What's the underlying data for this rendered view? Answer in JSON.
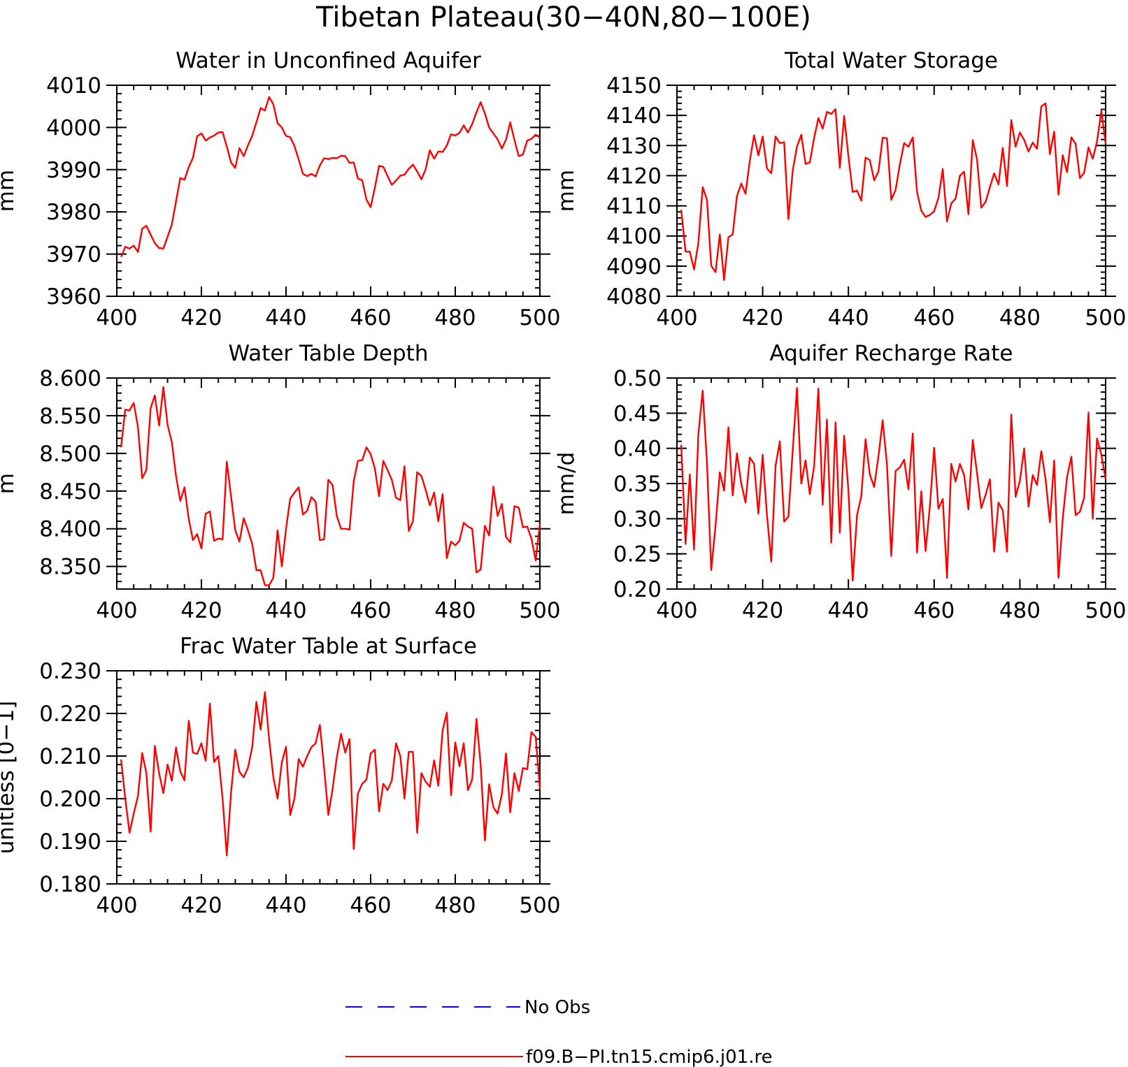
{
  "figure_title": "Tibetan Plateau(30−40N,80−100E)",
  "colors": {
    "model": "#ff0000",
    "obs": "#0000ff",
    "axes": "#000000"
  },
  "legend": {
    "position": "bottom-center",
    "entries": [
      {
        "label": "No Obs",
        "color": "#0000ff",
        "style": "dashed"
      },
      {
        "label": "f09.B−PI.tn15.cmip6.j01.re",
        "color": "#ff0000",
        "style": "solid"
      }
    ]
  },
  "chart_data": [
    {
      "type": "line",
      "title": "Water in Unconfined Aquifer",
      "xlabel": "",
      "ylabel": "mm",
      "xlim": [
        400,
        500
      ],
      "ylim": [
        3960,
        4010
      ],
      "xticks": [
        400,
        420,
        440,
        460,
        480,
        500
      ],
      "yticks": [
        3960,
        3970,
        3980,
        3990,
        4000,
        4010
      ],
      "ytick_labels": [
        "3960",
        "3970",
        "3980",
        "3990",
        "4000",
        "4010"
      ],
      "grid": false,
      "x_start": 401,
      "x_step": 1,
      "series": [
        {
          "name": "f09.B−PI.tn15.cmip6.j01.re",
          "values": [
            3969.3,
            3971.7,
            3971.3,
            3972.0,
            3970.5,
            3976.0,
            3976.7,
            3974.6,
            3972.6,
            3971.4,
            3971.3,
            3974.1,
            3977.0,
            3982.5,
            3988.0,
            3987.6,
            3990.6,
            3992.8,
            3997.9,
            3998.6,
            3996.9,
            3997.6,
            3998.1,
            3998.8,
            3998.9,
            3995.5,
            3991.7,
            3990.4,
            3995.1,
            3993.2,
            3995.8,
            3998.0,
            4001.2,
            4004.6,
            4004.0,
            4007.2,
            4005.5,
            4001.0,
            4000.0,
            3998.0,
            3997.7,
            3995.6,
            3992.4,
            3989.0,
            3988.5,
            3989.0,
            3988.4,
            3991.0,
            3992.7,
            3992.5,
            3992.8,
            3992.7,
            3993.3,
            3993.2,
            3991.6,
            3991.7,
            3987.9,
            3987.5,
            3982.9,
            3981.1,
            3985.7,
            3990.9,
            3990.7,
            3988.5,
            3986.4,
            3987.4,
            3988.6,
            3988.8,
            3990.2,
            3991.2,
            3989.6,
            3987.7,
            3990.1,
            3994.6,
            3992.6,
            3994.3,
            3994.2,
            3995.7,
            3998.4,
            3998.1,
            3998.7,
            4000.5,
            3998.8,
            4000.8,
            4003.6,
            4006.0,
            4003.3,
            4000.0,
            3998.6,
            3997.2,
            3995.0,
            3997.1,
            4001.2,
            3997.0,
            3993.2,
            3993.6,
            3996.9,
            3997.3,
            3998.3,
            3997.6
          ]
        }
      ]
    },
    {
      "type": "line",
      "title": "Total Water Storage",
      "xlabel": "",
      "ylabel": "mm",
      "xlim": [
        400,
        500
      ],
      "ylim": [
        4080,
        4150
      ],
      "xticks": [
        400,
        420,
        440,
        460,
        480,
        500
      ],
      "yticks": [
        4080,
        4090,
        4100,
        4110,
        4120,
        4130,
        4140,
        4150
      ],
      "ytick_labels": [
        "4080",
        "4090",
        "4100",
        "4110",
        "4120",
        "4130",
        "4140",
        "4150"
      ],
      "grid": false,
      "x_start": 401,
      "x_step": 1,
      "series": [
        {
          "name": "f09.B−PI.tn15.cmip6.j01.re",
          "values": [
            4108.7,
            4094.8,
            4094.8,
            4088.9,
            4097.6,
            4116.2,
            4112.0,
            4090.2,
            4088.0,
            4100.5,
            4085.4,
            4099.6,
            4100.5,
            4113.2,
            4117.4,
            4114.0,
            4125.0,
            4133.4,
            4126.7,
            4133.0,
            4122.4,
            4120.8,
            4133.0,
            4130.8,
            4131.1,
            4105.6,
            4121.6,
            4129.6,
            4133.6,
            4123.9,
            4124.4,
            4132.6,
            4139.1,
            4135.6,
            4141.2,
            4140.5,
            4142.1,
            4122.6,
            4139.8,
            4126.4,
            4114.6,
            4115.1,
            4111.7,
            4126.0,
            4125.2,
            4118.5,
            4121.3,
            4132.6,
            4132.4,
            4112.0,
            4115.2,
            4123.8,
            4130.8,
            4129.6,
            4132.7,
            4114.6,
            4108.4,
            4106.3,
            4107.0,
            4108.2,
            4112.6,
            4122.2,
            4104.8,
            4110.8,
            4112.4,
            4120.0,
            4121.3,
            4107.2,
            4131.8,
            4125.4,
            4109.4,
            4111.3,
            4116.2,
            4120.8,
            4117.1,
            4129.2,
            4116.6,
            4138.4,
            4129.6,
            4134.3,
            4131.9,
            4128.0,
            4131.0,
            4128.9,
            4143.0,
            4144.0,
            4127.2,
            4134.6,
            4113.7,
            4126.8,
            4121.2,
            4132.7,
            4130.6,
            4119.2,
            4121.0,
            4129.4,
            4125.6,
            4131.3,
            4141.5,
            4130.6
          ]
        }
      ]
    },
    {
      "type": "line",
      "title": "Water Table Depth",
      "xlabel": "",
      "ylabel": "m",
      "xlim": [
        400,
        500
      ],
      "ylim": [
        8.32,
        8.6
      ],
      "xticks": [
        400,
        420,
        440,
        460,
        480,
        500
      ],
      "yticks": [
        8.35,
        8.4,
        8.45,
        8.5,
        8.55,
        8.6
      ],
      "ytick_labels": [
        "8.350",
        "8.400",
        "8.450",
        "8.500",
        "8.550",
        "8.600"
      ],
      "grid": false,
      "x_start": 401,
      "x_step": 1,
      "series": [
        {
          "name": "f09.B−PI.tn15.cmip6.j01.re",
          "values": [
            8.508,
            8.558,
            8.557,
            8.567,
            8.535,
            8.467,
            8.478,
            8.56,
            8.577,
            8.537,
            8.588,
            8.538,
            8.515,
            8.47,
            8.437,
            8.455,
            8.413,
            8.385,
            8.393,
            8.374,
            8.42,
            8.423,
            8.384,
            8.387,
            8.386,
            8.489,
            8.443,
            8.398,
            8.383,
            8.414,
            8.398,
            8.38,
            8.345,
            8.345,
            8.325,
            8.325,
            8.335,
            8.398,
            8.35,
            8.4,
            8.44,
            8.448,
            8.455,
            8.419,
            8.424,
            8.442,
            8.436,
            8.385,
            8.386,
            8.465,
            8.458,
            8.417,
            8.4,
            8.4,
            8.399,
            8.463,
            8.49,
            8.491,
            8.508,
            8.499,
            8.48,
            8.443,
            8.49,
            8.478,
            8.465,
            8.441,
            8.438,
            8.483,
            8.397,
            8.41,
            8.475,
            8.47,
            8.452,
            8.431,
            8.448,
            8.41,
            8.446,
            8.361,
            8.383,
            8.378,
            8.384,
            8.408,
            8.403,
            8.4,
            8.342,
            8.346,
            8.404,
            8.391,
            8.456,
            8.417,
            8.433,
            8.389,
            8.382,
            8.43,
            8.428,
            8.402,
            8.403,
            8.387,
            8.358,
            8.406
          ]
        }
      ]
    },
    {
      "type": "line",
      "title": "Aquifer Recharge Rate",
      "xlabel": "",
      "ylabel": "mm/d",
      "xlim": [
        400,
        500
      ],
      "ylim": [
        0.2,
        0.5
      ],
      "xticks": [
        400,
        420,
        440,
        460,
        480,
        500
      ],
      "yticks": [
        0.2,
        0.25,
        0.3,
        0.35,
        0.4,
        0.45,
        0.5
      ],
      "ytick_labels": [
        "0.20",
        "0.25",
        "0.30",
        "0.35",
        "0.40",
        "0.45",
        "0.50"
      ],
      "grid": false,
      "x_start": 401,
      "x_step": 1,
      "series": [
        {
          "name": "f09.B−PI.tn15.cmip6.j01.re",
          "values": [
            0.405,
            0.264,
            0.363,
            0.256,
            0.42,
            0.482,
            0.38,
            0.227,
            0.29,
            0.366,
            0.34,
            0.43,
            0.333,
            0.393,
            0.35,
            0.323,
            0.387,
            0.378,
            0.307,
            0.391,
            0.305,
            0.239,
            0.375,
            0.41,
            0.296,
            0.303,
            0.396,
            0.486,
            0.35,
            0.383,
            0.335,
            0.375,
            0.485,
            0.32,
            0.441,
            0.266,
            0.437,
            0.28,
            0.418,
            0.34,
            0.212,
            0.305,
            0.332,
            0.413,
            0.363,
            0.345,
            0.388,
            0.44,
            0.376,
            0.247,
            0.368,
            0.373,
            0.384,
            0.342,
            0.421,
            0.252,
            0.339,
            0.254,
            0.318,
            0.401,
            0.314,
            0.328,
            0.216,
            0.378,
            0.353,
            0.378,
            0.362,
            0.313,
            0.412,
            0.365,
            0.315,
            0.334,
            0.356,
            0.253,
            0.323,
            0.312,
            0.253,
            0.448,
            0.331,
            0.354,
            0.4,
            0.317,
            0.362,
            0.348,
            0.396,
            0.356,
            0.295,
            0.383,
            0.216,
            0.3,
            0.359,
            0.388,
            0.305,
            0.31,
            0.33,
            0.451,
            0.3,
            0.414,
            0.391,
            0.356
          ]
        }
      ]
    },
    {
      "type": "line",
      "title": "Frac Water Table at Surface",
      "xlabel": "",
      "ylabel": "unitless [0−1]",
      "xlim": [
        400,
        500
      ],
      "ylim": [
        0.18,
        0.23
      ],
      "xticks": [
        400,
        420,
        440,
        460,
        480,
        500
      ],
      "yticks": [
        0.18,
        0.19,
        0.2,
        0.21,
        0.22,
        0.23
      ],
      "ytick_labels": [
        "0.180",
        "0.190",
        "0.200",
        "0.210",
        "0.220",
        "0.230"
      ],
      "grid": false,
      "x_start": 401,
      "x_step": 1,
      "series": [
        {
          "name": "f09.B−PI.tn15.cmip6.j01.re",
          "values": [
            0.2092,
            0.2,
            0.192,
            0.1965,
            0.2006,
            0.2107,
            0.206,
            0.1923,
            0.2124,
            0.206,
            0.2013,
            0.208,
            0.2042,
            0.212,
            0.2064,
            0.2043,
            0.2183,
            0.2108,
            0.2105,
            0.213,
            0.2089,
            0.2223,
            0.2086,
            0.21,
            0.2,
            0.1867,
            0.2015,
            0.2115,
            0.2063,
            0.205,
            0.2073,
            0.212,
            0.2227,
            0.2162,
            0.225,
            0.214,
            0.205,
            0.2,
            0.2085,
            0.2122,
            0.1962,
            0.2,
            0.2093,
            0.2075,
            0.21,
            0.2121,
            0.213,
            0.2173,
            0.2073,
            0.1962,
            0.2023,
            0.2097,
            0.2152,
            0.2108,
            0.214,
            0.1882,
            0.2012,
            0.2035,
            0.2045,
            0.2106,
            0.2115,
            0.197,
            0.2035,
            0.202,
            0.2043,
            0.213,
            0.21,
            0.2,
            0.211,
            0.211,
            0.192,
            0.206,
            0.204,
            0.2028,
            0.209,
            0.203,
            0.216,
            0.2202,
            0.2008,
            0.2132,
            0.2076,
            0.213,
            0.202,
            0.2045,
            0.2187,
            0.208,
            0.1902,
            0.2034,
            0.198,
            0.1965,
            0.201,
            0.2106,
            0.1968,
            0.206,
            0.2018,
            0.2072,
            0.2069,
            0.2156,
            0.2145,
            0.2023
          ]
        }
      ]
    }
  ]
}
